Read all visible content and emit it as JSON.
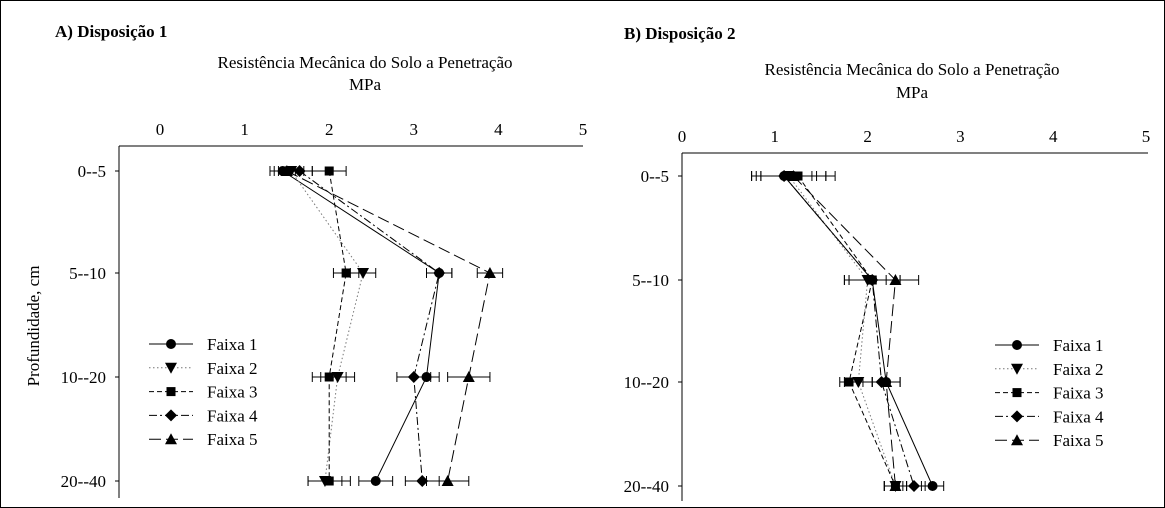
{
  "chart_data": [
    {
      "type": "line",
      "panel_label": "A) Disposição 1",
      "title_line1": "Resistência Mecânica do Solo a Penetração",
      "title_line2": "MPa",
      "xlabel": "",
      "ylabel": "Profundidade, cm",
      "xlim": [
        0,
        5
      ],
      "x_ticks": [
        "0",
        "1",
        "2",
        "3",
        "4",
        "5"
      ],
      "categories": [
        "0--5",
        "5--10",
        "10--20",
        "20--40"
      ],
      "legend_position": "bottom-left",
      "series": [
        {
          "name": "Faixa 1",
          "marker": "circle",
          "dash": "solid",
          "values": [
            1.45,
            3.3,
            3.15,
            2.55
          ],
          "errors": [
            0.15,
            0.15,
            0.15,
            0.2
          ]
        },
        {
          "name": "Faixa 2",
          "marker": "triangle-down",
          "dash": "dotted",
          "values": [
            1.55,
            2.4,
            2.1,
            1.95
          ],
          "errors": [
            0.15,
            0.15,
            0.2,
            0.2
          ]
        },
        {
          "name": "Faixa 3",
          "marker": "square",
          "dash": "dashed",
          "values": [
            2.0,
            2.2,
            2.0,
            2.0
          ],
          "errors": [
            0.2,
            0.15,
            0.2,
            0.25
          ]
        },
        {
          "name": "Faixa 4",
          "marker": "diamond",
          "dash": "dashdot",
          "values": [
            1.65,
            3.3,
            3.0,
            3.1
          ],
          "errors": [
            0.15,
            0.15,
            0.2,
            0.2
          ]
        },
        {
          "name": "Faixa 5",
          "marker": "triangle-up",
          "dash": "longdash",
          "values": [
            1.5,
            3.9,
            3.65,
            3.4
          ],
          "errors": [
            0.15,
            0.15,
            0.25,
            0.25
          ]
        }
      ]
    },
    {
      "type": "line",
      "panel_label": "B) Disposição 2",
      "title_line1": "Resistência Mecânica do Solo a Penetração",
      "title_line2": "MPa",
      "xlabel": "",
      "ylabel": "",
      "xlim": [
        0,
        5
      ],
      "x_ticks": [
        "0",
        "1",
        "2",
        "3",
        "4",
        "5"
      ],
      "categories": [
        "0--5",
        "5--10",
        "10--20",
        "20--40"
      ],
      "legend_position": "bottom-right",
      "series": [
        {
          "name": "Faixa 1",
          "marker": "circle",
          "dash": "solid",
          "values": [
            1.1,
            2.05,
            2.2,
            2.7
          ],
          "errors": [
            0.35,
            0.3,
            0.15,
            0.12
          ]
        },
        {
          "name": "Faixa 2",
          "marker": "triangle-down",
          "dash": "dotted",
          "values": [
            1.15,
            2.0,
            1.9,
            2.3
          ],
          "errors": [
            0.4,
            0.2,
            0.15,
            0.12
          ]
        },
        {
          "name": "Faixa 3",
          "marker": "square",
          "dash": "dashed",
          "values": [
            1.25,
            2.05,
            1.8,
            2.3
          ],
          "errors": [
            0.4,
            0.25,
            0.1,
            0.12
          ]
        },
        {
          "name": "Faixa 4",
          "marker": "diamond",
          "dash": "dashdot",
          "values": [
            1.1,
            2.05,
            2.15,
            2.5
          ],
          "errors": [
            0.3,
            0.3,
            0.2,
            0.12
          ]
        },
        {
          "name": "Faixa 5",
          "marker": "triangle-up",
          "dash": "longdash",
          "values": [
            1.2,
            2.3,
            2.2,
            2.3
          ],
          "errors": [
            0.35,
            0.25,
            0.15,
            0.12
          ]
        }
      ]
    }
  ]
}
